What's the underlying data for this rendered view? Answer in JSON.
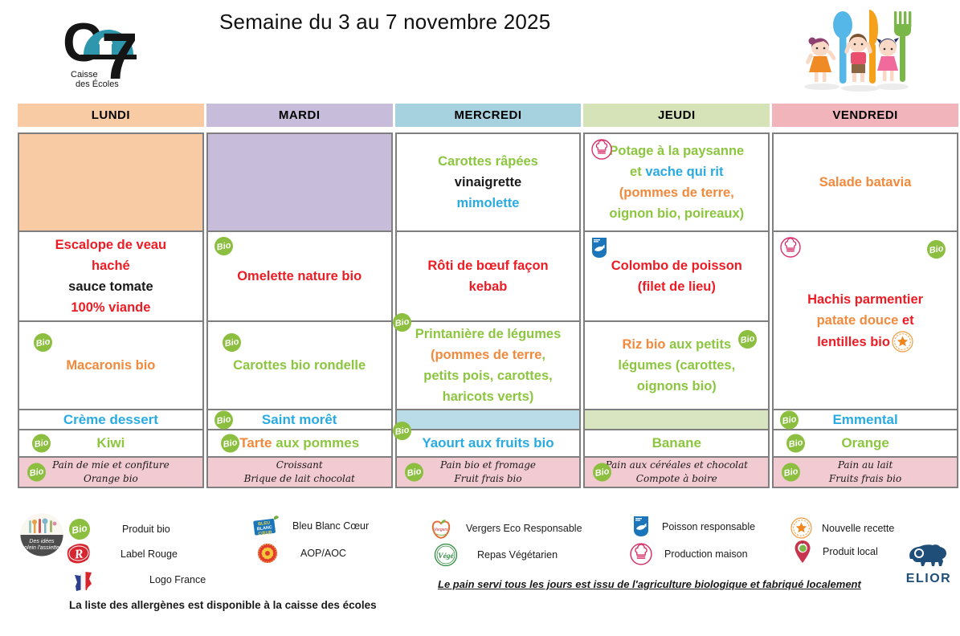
{
  "title": "Semaine du 3 au 7 novembre 2025",
  "org": {
    "line1": "Caisse",
    "line2": "des Écoles"
  },
  "palette": {
    "green": "#8CC63F",
    "orange": "#F18A3C",
    "blue": "#29ABE2",
    "red": "#EC1C24",
    "black": "#1A1A1A"
  },
  "icons": {
    "bio_label": "Bio"
  },
  "gouter_bg": "#F2CAD1",
  "days": [
    {
      "key": "lundi",
      "name": "LUNDI",
      "color": "#F8CBA4",
      "cells": [
        {
          "row": "entree",
          "bg": "#F8CBA4",
          "lines": []
        },
        {
          "row": "plat",
          "lines": [
            [
              {
                "t": "Escalope de veau",
                "c": "red"
              }
            ],
            [
              {
                "t": "haché",
                "c": "red"
              }
            ],
            [
              {
                "t": "sauce tomate",
                "c": "black"
              }
            ],
            [
              {
                "t": "100% viande",
                "c": "red"
              }
            ]
          ]
        },
        {
          "row": "accomp",
          "icons": [
            {
              "type": "bio",
              "pos": "tl2"
            }
          ],
          "lines": [
            [
              {
                "t": "Macaronis bio",
                "c": "orange"
              }
            ]
          ]
        },
        {
          "row": "fromage",
          "lines": [
            [
              {
                "t": "Crème dessert",
                "c": "blue"
              }
            ]
          ]
        },
        {
          "row": "dessert",
          "icons": [
            {
              "type": "bio",
              "pos": "left"
            }
          ],
          "lines": [
            [
              {
                "t": "Kiwi",
                "c": "green"
              }
            ]
          ]
        },
        {
          "row": "gouter",
          "icons": [
            {
              "type": "bio",
              "pos": "left"
            }
          ],
          "lines": [
            [
              {
                "t": "Pain de mie et confiture",
                "c": "black"
              }
            ],
            [
              {
                "t": "Orange bio",
                "c": "black"
              }
            ]
          ]
        }
      ]
    },
    {
      "key": "mardi",
      "name": "MARDI",
      "color": "#C7BDDA",
      "cells": [
        {
          "row": "entree",
          "bg": "#C7BDDA",
          "lines": []
        },
        {
          "row": "plat",
          "icons": [
            {
              "type": "bio",
              "pos": "tl"
            }
          ],
          "lines": [
            [
              {
                "t": "Omelette nature bio",
                "c": "red"
              }
            ]
          ]
        },
        {
          "row": "accomp",
          "icons": [
            {
              "type": "bio",
              "pos": "tl2"
            }
          ],
          "lines": [
            [
              {
                "t": "Carottes bio rondelle",
                "c": "green"
              }
            ]
          ]
        },
        {
          "row": "fromage",
          "icons": [
            {
              "type": "bio",
              "pos": "left"
            }
          ],
          "lines": [
            [
              {
                "t": "Saint morêt",
                "c": "blue"
              }
            ]
          ]
        },
        {
          "row": "dessert",
          "icons": [
            {
              "type": "bio",
              "pos": "left"
            }
          ],
          "lines": [
            [
              {
                "t": "Tarte ",
                "c": "orange"
              },
              {
                "t": "aux pommes",
                "c": "green"
              }
            ]
          ]
        },
        {
          "row": "gouter",
          "lines": [
            [
              {
                "t": "Croissant",
                "c": "black"
              }
            ],
            [
              {
                "t": "Brique de lait chocolat",
                "c": "black"
              }
            ]
          ]
        }
      ]
    },
    {
      "key": "mercredi",
      "name": "MERCREDI",
      "color": "#A6D2E0",
      "cells": [
        {
          "row": "entree",
          "lines": [
            [
              {
                "t": "Carottes râpées",
                "c": "green"
              }
            ],
            [
              {
                "t": "vinaigrette",
                "c": "black"
              }
            ],
            [
              {
                "t": "mimolette",
                "c": "blue"
              }
            ]
          ]
        },
        {
          "row": "plat",
          "lines": [
            [
              {
                "t": "Rôti de bœuf façon",
                "c": "red"
              }
            ],
            [
              {
                "t": "kebab",
                "c": "red"
              }
            ]
          ]
        },
        {
          "row": "accomp",
          "icons": [
            {
              "type": "bio",
              "pos": "tlo"
            }
          ],
          "lines": [
            [
              {
                "t": "Printanière de légumes",
                "c": "green"
              }
            ],
            [
              {
                "t": "(pommes de terre",
                "c": "orange"
              },
              {
                "t": ",",
                "c": "green"
              }
            ],
            [
              {
                "t": "petits pois, carottes,",
                "c": "green"
              }
            ],
            [
              {
                "t": "haricots verts)",
                "c": "green"
              }
            ]
          ]
        },
        {
          "row": "fromage",
          "bg": "#B9DCE8",
          "lines": []
        },
        {
          "row": "dessert",
          "icons": [
            {
              "type": "bio",
              "pos": "tlo"
            }
          ],
          "lines": [
            [
              {
                "t": "Yaourt aux fruits bio",
                "c": "blue"
              }
            ]
          ]
        },
        {
          "row": "gouter",
          "icons": [
            {
              "type": "bio",
              "pos": "left"
            }
          ],
          "lines": [
            [
              {
                "t": "Pain bio et fromage",
                "c": "black"
              }
            ],
            [
              {
                "t": "Fruit frais bio",
                "c": "black"
              }
            ]
          ]
        }
      ]
    },
    {
      "key": "jeudi",
      "name": "JEUDI",
      "color": "#D6E3B8",
      "cells": [
        {
          "row": "entree",
          "icons": [
            {
              "type": "chef",
              "pos": "tl"
            }
          ],
          "lines": [
            [
              {
                "t": "Potage à la paysanne",
                "c": "green"
              }
            ],
            [
              {
                "t": "et ",
                "c": "green"
              },
              {
                "t": "vache qui rit",
                "c": "blue"
              }
            ],
            [
              {
                "t": "(pommes de terre,",
                "c": "orange"
              }
            ],
            [
              {
                "t": "oignon bio, poireaux)",
                "c": "green"
              }
            ]
          ]
        },
        {
          "row": "plat",
          "icons": [
            {
              "type": "fish",
              "pos": "tl"
            }
          ],
          "lines": [
            [
              {
                "t": "Colombo de poisson",
                "c": "red"
              }
            ],
            [
              {
                "t": "(filet de lieu)",
                "c": "red"
              }
            ]
          ]
        },
        {
          "row": "accomp",
          "icons": [
            {
              "type": "bio",
              "pos": "tr"
            }
          ],
          "lines": [
            [
              {
                "t": "Riz bio",
                "c": "orange"
              },
              {
                "t": " aux petits",
                "c": "green"
              }
            ],
            [
              {
                "t": "légumes (carottes,",
                "c": "green"
              }
            ],
            [
              {
                "t": "oignons bio)",
                "c": "green"
              }
            ]
          ]
        },
        {
          "row": "fromage",
          "bg": "#D9E5C0",
          "lines": []
        },
        {
          "row": "dessert",
          "lines": [
            [
              {
                "t": "Banane",
                "c": "green"
              }
            ]
          ]
        },
        {
          "row": "gouter",
          "icons": [
            {
              "type": "bio",
              "pos": "left"
            }
          ],
          "lines": [
            [
              {
                "t": "Pain aux céréales et chocolat",
                "c": "black"
              }
            ],
            [
              {
                "t": "Compote à boire",
                "c": "black"
              }
            ]
          ]
        }
      ]
    },
    {
      "key": "vendredi",
      "name": "VENDREDI",
      "color": "#F0B4BA",
      "cells": [
        {
          "row": "entree",
          "lines": [
            [
              {
                "t": "Salade batavia",
                "c": "orange"
              }
            ]
          ]
        },
        {
          "row": "plat_span",
          "icons": [
            {
              "type": "chef",
              "pos": "tl"
            },
            {
              "type": "bio",
              "pos": "tr"
            }
          ],
          "lines": [
            [
              {
                "t": "Hachis parmentier",
                "c": "red"
              }
            ],
            [
              {
                "t": "patate douce",
                "c": "orange"
              },
              {
                "t": " et",
                "c": "red"
              }
            ],
            [
              {
                "t": "lentilles bio",
                "c": "red"
              },
              {
                "icon": "star"
              }
            ]
          ]
        },
        {
          "row": "fromage",
          "icons": [
            {
              "type": "bio",
              "pos": "left"
            }
          ],
          "lines": [
            [
              {
                "t": "Emmental",
                "c": "blue"
              }
            ]
          ]
        },
        {
          "row": "dessert",
          "icons": [
            {
              "type": "bio",
              "pos": "left"
            }
          ],
          "lines": [
            [
              {
                "t": "Orange",
                "c": "green"
              }
            ]
          ]
        },
        {
          "row": "gouter",
          "icons": [
            {
              "type": "bio",
              "pos": "left"
            }
          ],
          "lines": [
            [
              {
                "t": "Pain au lait",
                "c": "black"
              }
            ],
            [
              {
                "t": "Fruits frais bio",
                "c": "black"
              }
            ]
          ]
        }
      ]
    }
  ],
  "legend": {
    "plate_line1": "Des idées",
    "plate_line2": "plein l'assiette",
    "items": [
      {
        "id": "produit-bio",
        "label": "Produit bio"
      },
      {
        "id": "label-rouge",
        "label": "Label Rouge"
      },
      {
        "id": "logo-france",
        "label": "Logo France"
      },
      {
        "id": "bleu-blanc-coeur",
        "label": "Bleu Blanc Cœur"
      },
      {
        "id": "aop-aoc",
        "label": "AOP/AOC"
      },
      {
        "id": "vergers",
        "label": "Vergers Eco Responsable"
      },
      {
        "id": "repas-vegetarien",
        "label": "Repas Végétarien"
      },
      {
        "id": "poisson-responsable",
        "label": "Poisson responsable"
      },
      {
        "id": "production-maison",
        "label": "Production maison"
      },
      {
        "id": "nouvelle-recette",
        "label": "Nouvelle recette"
      },
      {
        "id": "produit-local",
        "label": "Produit local"
      }
    ],
    "elior_label": "ELIOR"
  },
  "footer": {
    "bread_note": "Le pain servi tous les jours est issu de l'agriculture biologique et fabriqué localement",
    "allergen_note": "La liste des allergènes est disponible à la caisse des écoles"
  }
}
